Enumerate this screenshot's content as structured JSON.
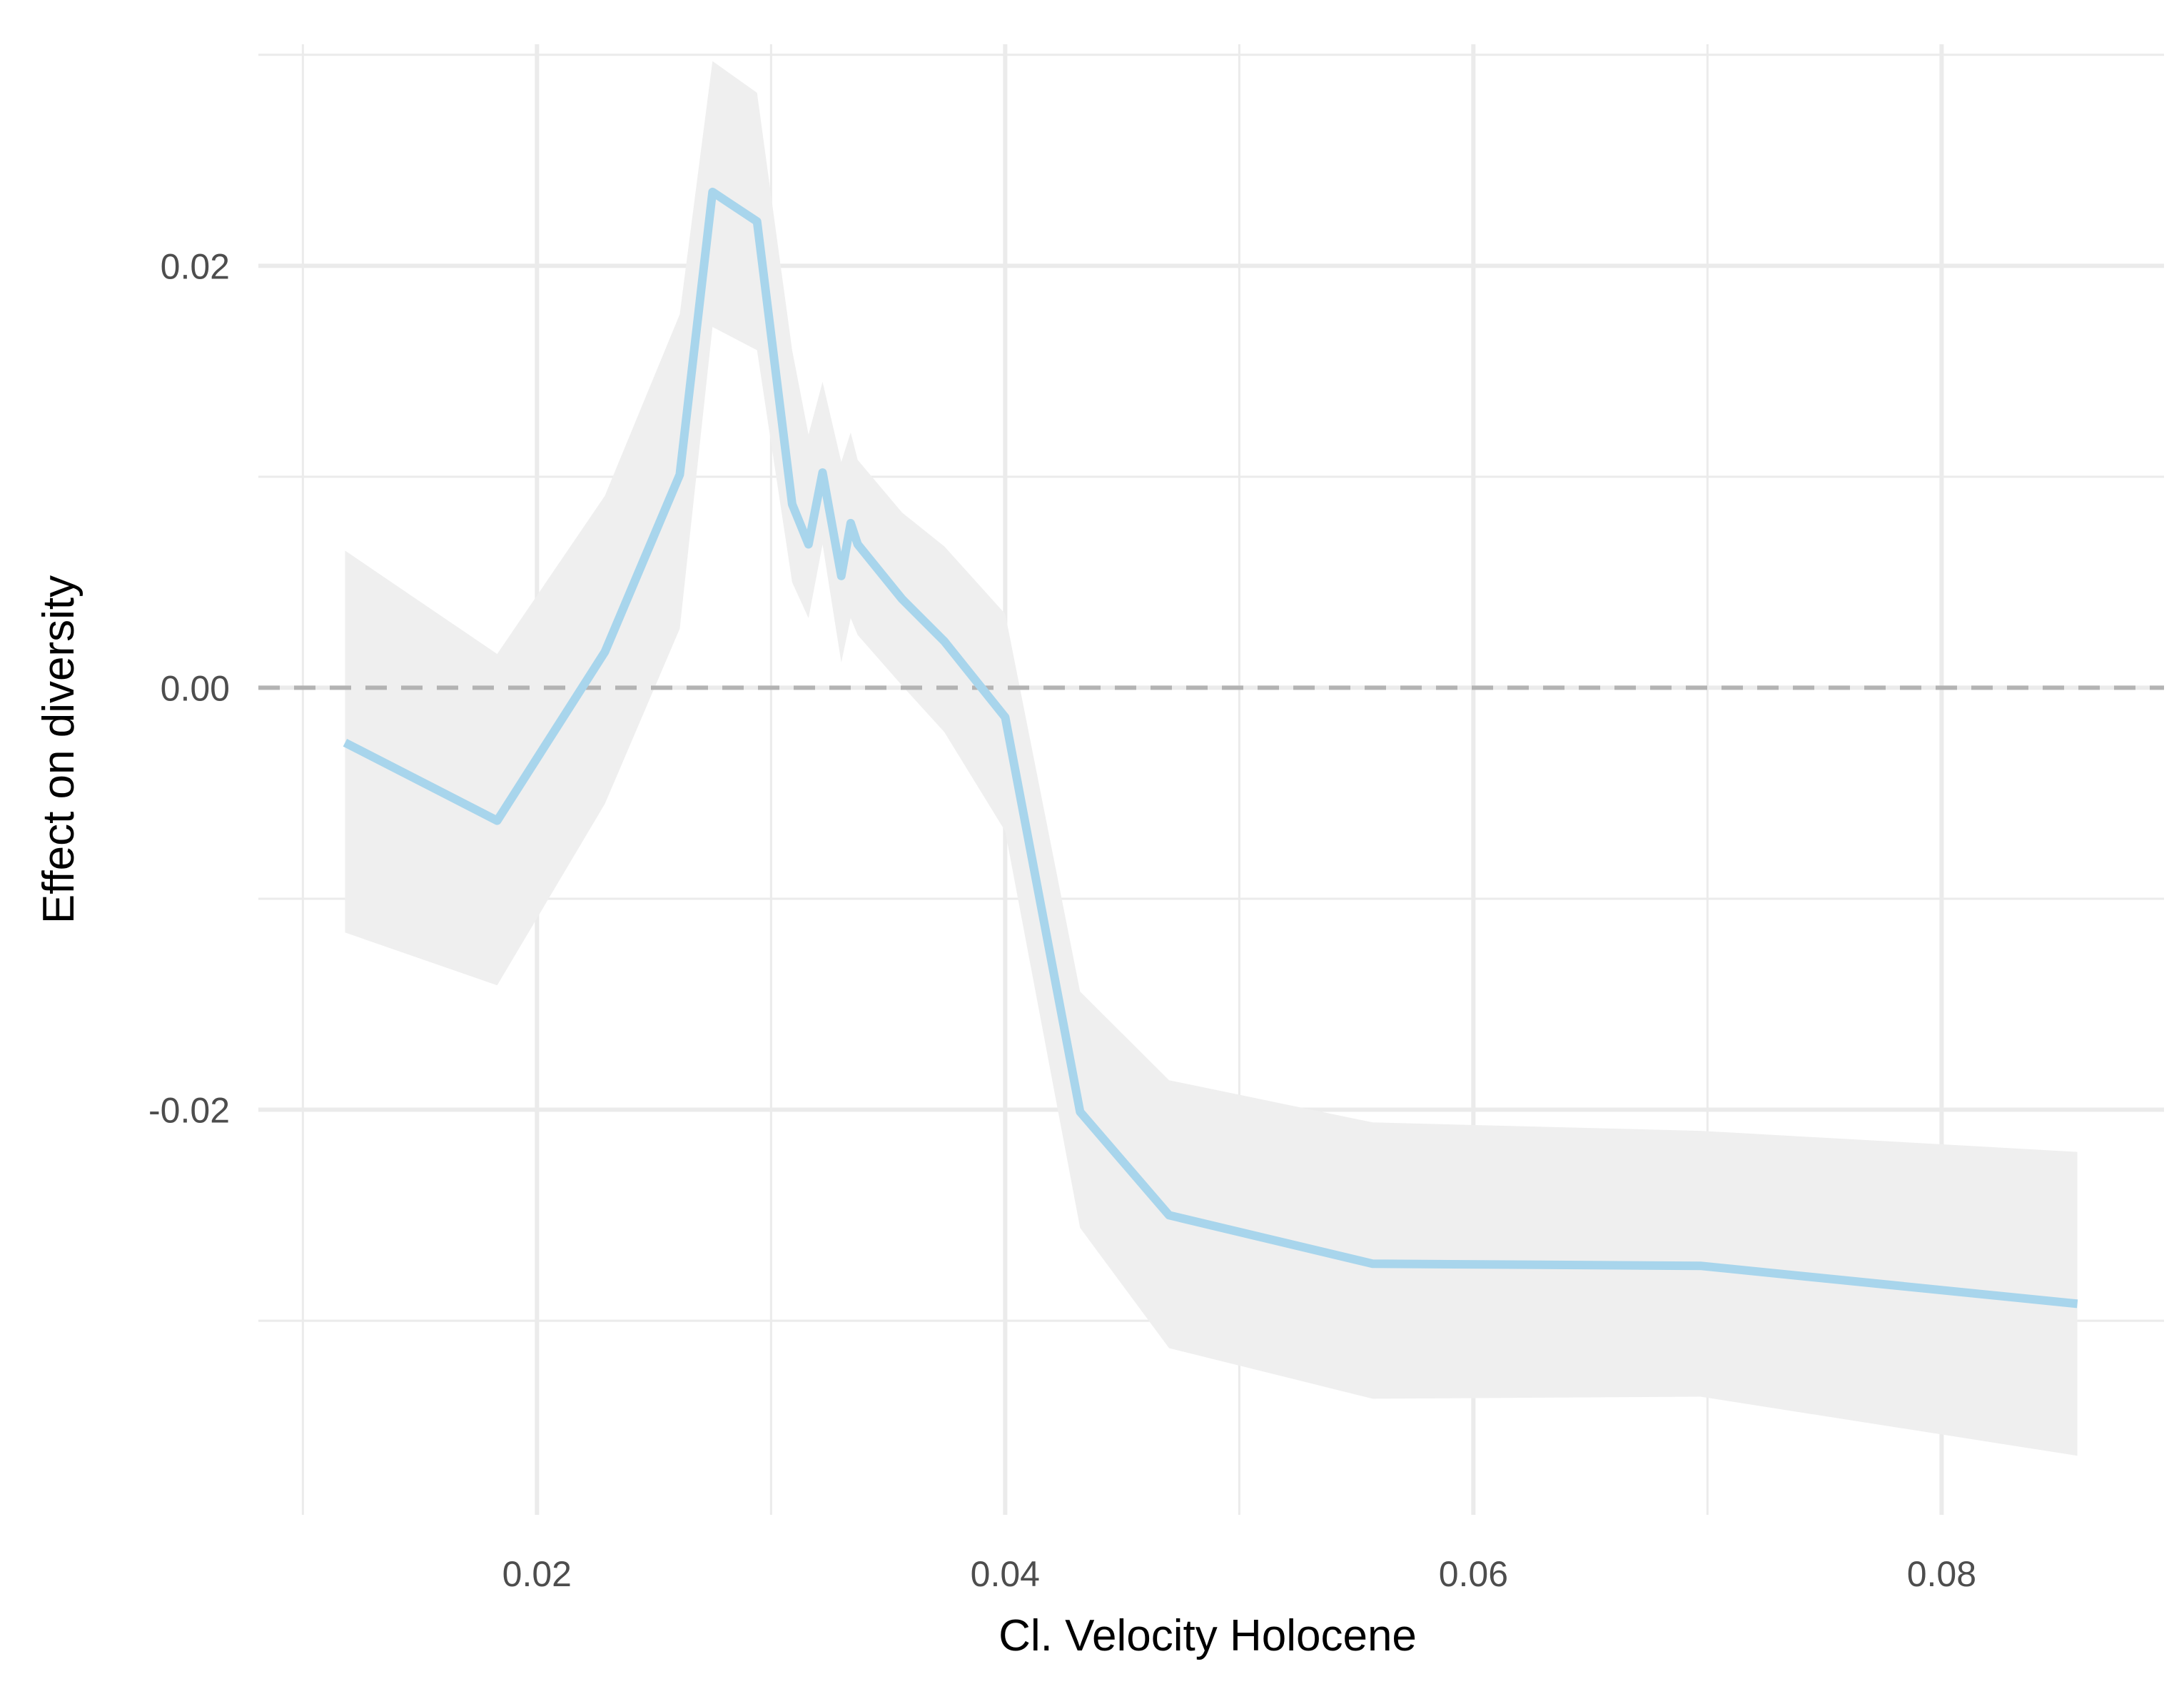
{
  "chart_data": {
    "type": "line",
    "title": "",
    "xlabel": "Cl. Velocity Holocene",
    "ylabel": "Effect on diversity",
    "xlim": [
      0.0081,
      0.0895
    ],
    "ylim": [
      -0.0392,
      0.0305
    ],
    "x_ticks": [
      0.02,
      0.04,
      0.06,
      0.08
    ],
    "x_tick_labels": [
      "0.02",
      "0.04",
      "0.06",
      "0.08"
    ],
    "x_minor_ticks": [
      0.01,
      0.03,
      0.05,
      0.07
    ],
    "y_ticks": [
      0.02,
      0.0,
      -0.02
    ],
    "y_tick_labels": [
      "0.02",
      "0.00",
      "-0.02"
    ],
    "y_minor_ticks": [
      0.03,
      0.01,
      -0.01,
      -0.03
    ],
    "grid": true,
    "legend": "none",
    "reference_line": {
      "y": 0,
      "style": "dashed",
      "color": "#b3b3b3"
    },
    "colors": {
      "line": "#a8d5ec",
      "band": "#efefef",
      "grid": "#ebebeb"
    },
    "series": [
      {
        "x": [
          0.0118,
          0.0183,
          0.0229,
          0.0261,
          0.0275,
          0.0294,
          0.0309,
          0.0316,
          0.0322,
          0.033,
          0.0334,
          0.0337,
          0.0356,
          0.0374,
          0.04,
          0.0432,
          0.047,
          0.0557,
          0.0697,
          0.0858
        ],
        "y": [
          -0.0026,
          -0.0063,
          0.0017,
          0.0101,
          0.0235,
          0.0221,
          0.0087,
          0.0068,
          0.0102,
          0.0053,
          0.0078,
          0.0068,
          0.0042,
          0.0022,
          -0.0014,
          -0.0201,
          -0.025,
          -0.0273,
          -0.0274,
          -0.0292
        ],
        "upper": [
          0.0065,
          0.0016,
          0.0091,
          0.0177,
          0.0297,
          0.0282,
          0.016,
          0.012,
          0.0145,
          0.0107,
          0.0121,
          0.0108,
          0.0083,
          0.0067,
          0.0035,
          -0.0144,
          -0.0186,
          -0.0206,
          -0.021,
          -0.022
        ],
        "lower": [
          -0.0116,
          -0.0141,
          -0.0055,
          0.0028,
          0.0171,
          0.016,
          0.005,
          0.0033,
          0.0068,
          0.0012,
          0.0033,
          0.0025,
          0.0001,
          -0.0021,
          -0.0068,
          -0.0256,
          -0.0313,
          -0.0337,
          -0.0336,
          -0.0364
        ]
      }
    ]
  }
}
